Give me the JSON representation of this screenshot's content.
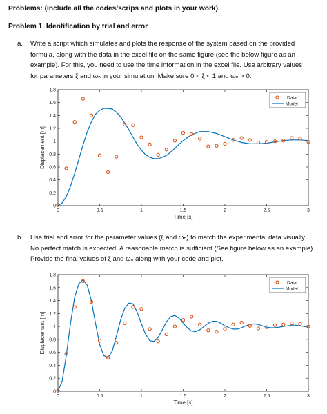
{
  "header": {
    "problems": "Problems: (Include all the codes/scrips and plots in your work).",
    "problem1": "Problem 1. Identification by trial and error"
  },
  "part_a": {
    "label": "a.",
    "lines": [
      "Write a script which simulates and plots the response of the system based on the provided",
      "formula, along with the data in the excel file on the same figure (see the below figure as an",
      "example).  For this, you need to use the time information in the excel file. Use arbitrary values",
      "for parameters ξ and ωₙ in your simulation. Make sure 0 < ξ < 1 and ωₙ > 0."
    ]
  },
  "part_b": {
    "label": "b.",
    "lines": [
      "Use trial and error for the parameter values (ξ and ωₙ) to match the experimental data visually.",
      "No perfect match is expected. A reasonable match is sufficient (See figure below as an example).",
      "Provide the final values of ξ and ωₙ along with your code and plot."
    ]
  },
  "chart_data": [
    {
      "type": "line",
      "title": "",
      "xlabel": "Time [s]",
      "ylabel": "Displacement [m]",
      "xlim": [
        0,
        3
      ],
      "ylim": [
        0,
        1.8
      ],
      "xticks": [
        "0",
        "0.5",
        "1",
        "1.5",
        "2",
        "2.5",
        "3"
      ],
      "xtick_values": [
        0,
        0.5,
        1,
        1.5,
        2,
        2.5,
        3
      ],
      "yticks": [
        "0",
        "0.2",
        "0.4",
        "0.6",
        "0.8",
        "1",
        "1.2",
        "1.4",
        "1.6",
        "1.8"
      ],
      "ytick_values": [
        0,
        0.2,
        0.4,
        0.6,
        0.8,
        1,
        1.2,
        1.4,
        1.6,
        1.8
      ],
      "legend": [
        "Data",
        "Model"
      ],
      "legend_position": "top-right",
      "colors": {
        "data": "#d95319",
        "model": "#0072bd"
      },
      "series": [
        {
          "name": "Data",
          "kind": "scatter",
          "x": [
            0,
            0.1,
            0.2,
            0.3,
            0.4,
            0.5,
            0.6,
            0.7,
            0.8,
            0.9,
            1.0,
            1.1,
            1.2,
            1.3,
            1.4,
            1.5,
            1.6,
            1.7,
            1.8,
            1.9,
            2.0,
            2.1,
            2.2,
            2.3,
            2.4,
            2.5,
            2.6,
            2.7,
            2.8,
            2.9,
            3.0
          ],
          "y": [
            0.01,
            0.58,
            1.3,
            1.66,
            1.4,
            0.78,
            0.52,
            0.76,
            1.26,
            1.25,
            1.06,
            0.95,
            0.79,
            0.87,
            1.01,
            1.13,
            1.11,
            1.04,
            0.92,
            0.93,
            0.96,
            1.02,
            1.05,
            1.02,
            0.98,
            0.99,
            1.0,
            1.01,
            1.05,
            1.04,
            0.99
          ]
        },
        {
          "name": "Model",
          "kind": "line",
          "x": [
            0,
            0.05,
            0.1,
            0.15,
            0.2,
            0.25,
            0.3,
            0.35,
            0.4,
            0.45,
            0.5,
            0.55,
            0.6,
            0.65,
            0.7,
            0.75,
            0.8,
            0.85,
            0.9,
            0.95,
            1.0,
            1.05,
            1.1,
            1.15,
            1.2,
            1.25,
            1.3,
            1.35,
            1.4,
            1.45,
            1.5,
            1.6,
            1.7,
            1.8,
            1.9,
            2.0,
            2.1,
            2.2,
            2.3,
            2.4,
            2.5,
            2.6,
            2.7,
            2.8,
            2.9,
            3.0
          ],
          "y": [
            0.0,
            0.04,
            0.14,
            0.3,
            0.5,
            0.72,
            0.94,
            1.14,
            1.3,
            1.42,
            1.48,
            1.51,
            1.51,
            1.5,
            1.45,
            1.38,
            1.28,
            1.18,
            1.06,
            0.95,
            0.86,
            0.79,
            0.75,
            0.73,
            0.73,
            0.75,
            0.78,
            0.83,
            0.89,
            0.95,
            1.01,
            1.1,
            1.15,
            1.15,
            1.12,
            1.07,
            1.02,
            0.98,
            0.96,
            0.96,
            0.97,
            0.99,
            1.01,
            1.02,
            1.02,
            1.01
          ]
        }
      ]
    },
    {
      "type": "line",
      "title": "",
      "xlabel": "Time [s]",
      "ylabel": "Displacement [m]",
      "xlim": [
        0,
        3
      ],
      "ylim": [
        0,
        1.8
      ],
      "xticks": [
        "0",
        "0.5",
        "1",
        "1.5",
        "2",
        "2.5",
        "3"
      ],
      "xtick_values": [
        0,
        0.5,
        1,
        1.5,
        2,
        2.5,
        3
      ],
      "yticks": [
        "0",
        "0.2",
        "0.4",
        "0.6",
        "0.8",
        "1",
        "1.2",
        "1.4",
        "1.6",
        "1.8"
      ],
      "ytick_values": [
        0,
        0.2,
        0.4,
        0.6,
        0.8,
        1,
        1.2,
        1.4,
        1.6,
        1.8
      ],
      "legend": [
        "Data",
        "Model"
      ],
      "legend_position": "top-right",
      "colors": {
        "data": "#d95319",
        "model": "#0072bd"
      },
      "series": [
        {
          "name": "Data",
          "kind": "scatter",
          "x": [
            0,
            0.1,
            0.2,
            0.3,
            0.4,
            0.5,
            0.6,
            0.7,
            0.8,
            0.9,
            1.0,
            1.1,
            1.2,
            1.3,
            1.4,
            1.5,
            1.6,
            1.7,
            1.8,
            1.9,
            2.0,
            2.1,
            2.2,
            2.3,
            2.4,
            2.5,
            2.6,
            2.7,
            2.8,
            2.9,
            3.0
          ],
          "y": [
            0.01,
            0.58,
            1.3,
            1.7,
            1.38,
            0.78,
            0.52,
            0.75,
            1.05,
            1.3,
            1.27,
            0.96,
            0.77,
            0.88,
            1.0,
            1.1,
            1.15,
            1.03,
            0.94,
            0.92,
            0.96,
            1.03,
            1.06,
            1.01,
            0.97,
            0.99,
            1.02,
            1.03,
            1.05,
            1.04,
            1.0
          ]
        },
        {
          "name": "Model",
          "kind": "line",
          "x": [
            0,
            0.05,
            0.1,
            0.15,
            0.2,
            0.25,
            0.3,
            0.35,
            0.4,
            0.45,
            0.5,
            0.55,
            0.6,
            0.65,
            0.7,
            0.75,
            0.8,
            0.85,
            0.9,
            0.95,
            1.0,
            1.05,
            1.1,
            1.15,
            1.2,
            1.25,
            1.3,
            1.35,
            1.4,
            1.45,
            1.5,
            1.55,
            1.6,
            1.65,
            1.7,
            1.75,
            1.8,
            1.85,
            1.9,
            1.95,
            2.0,
            2.05,
            2.1,
            2.15,
            2.2,
            2.25,
            2.3,
            2.35,
            2.4,
            2.45,
            2.5,
            2.55,
            2.6,
            2.65,
            2.7,
            2.75,
            2.8,
            2.85,
            2.9,
            2.95,
            3.0
          ],
          "y": [
            0.0,
            0.15,
            0.55,
            1.05,
            1.45,
            1.66,
            1.72,
            1.64,
            1.4,
            1.05,
            0.72,
            0.55,
            0.52,
            0.62,
            0.85,
            1.1,
            1.28,
            1.36,
            1.35,
            1.22,
            1.04,
            0.88,
            0.78,
            0.77,
            0.83,
            0.95,
            1.07,
            1.15,
            1.17,
            1.13,
            1.05,
            0.98,
            0.93,
            0.92,
            0.95,
            1.0,
            1.05,
            1.08,
            1.08,
            1.05,
            1.01,
            0.98,
            0.96,
            0.96,
            0.98,
            1.01,
            1.03,
            1.04,
            1.03,
            1.01,
            0.99,
            0.98,
            0.98,
            0.99,
            1.0,
            1.01,
            1.02,
            1.02,
            1.01,
            1.0,
            0.99
          ]
        }
      ]
    }
  ]
}
